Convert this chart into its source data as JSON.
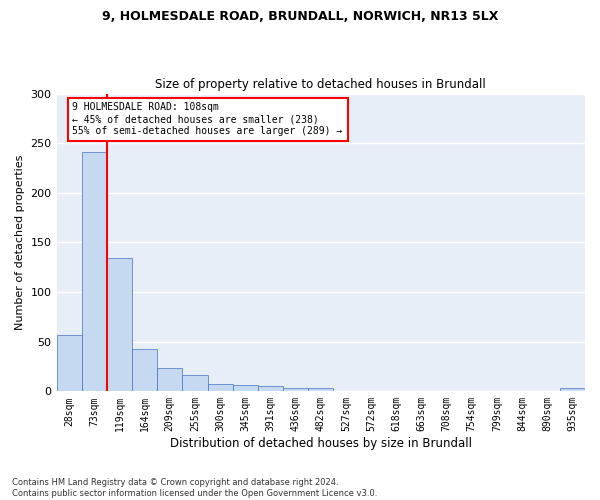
{
  "title_line1": "9, HOLMESDALE ROAD, BRUNDALL, NORWICH, NR13 5LX",
  "title_line2": "Size of property relative to detached houses in Brundall",
  "xlabel": "Distribution of detached houses by size in Brundall",
  "ylabel": "Number of detached properties",
  "bar_labels": [
    "28sqm",
    "73sqm",
    "119sqm",
    "164sqm",
    "209sqm",
    "255sqm",
    "300sqm",
    "345sqm",
    "391sqm",
    "436sqm",
    "482sqm",
    "527sqm",
    "572sqm",
    "618sqm",
    "663sqm",
    "708sqm",
    "754sqm",
    "799sqm",
    "844sqm",
    "890sqm",
    "935sqm"
  ],
  "bar_values": [
    57,
    241,
    134,
    43,
    24,
    16,
    7,
    6,
    5,
    3,
    3,
    0,
    0,
    0,
    0,
    0,
    0,
    0,
    0,
    0,
    3
  ],
  "bar_color": "#c5d9f1",
  "bar_edge_color": "#4472c4",
  "vline_color": "red",
  "annotation_text": "9 HOLMESDALE ROAD: 108sqm\n← 45% of detached houses are smaller (238)\n55% of semi-detached houses are larger (289) →",
  "annotation_box_color": "white",
  "annotation_box_edge_color": "red",
  "ylim": [
    0,
    300
  ],
  "yticks": [
    0,
    50,
    100,
    150,
    200,
    250,
    300
  ],
  "footnote": "Contains HM Land Registry data © Crown copyright and database right 2024.\nContains public sector information licensed under the Open Government Licence v3.0.",
  "bg_color": "#e8eef8"
}
